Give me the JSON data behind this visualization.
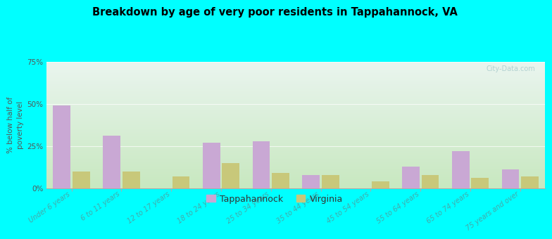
{
  "title": "Breakdown by age of very poor residents in Tappahannock, VA",
  "categories": [
    "Under 6 years",
    "6 to 11 years",
    "12 to 17 years",
    "18 to 24 years",
    "25 to 34 years",
    "35 to 44 years",
    "45 to 54 years",
    "55 to 64 years",
    "65 to 74 years",
    "75 years and over"
  ],
  "tappahannock_values": [
    49,
    31,
    0,
    27,
    28,
    8,
    0,
    13,
    22,
    11
  ],
  "virginia_values": [
    10,
    10,
    7,
    15,
    9,
    8,
    4,
    8,
    6,
    7
  ],
  "tappahannock_color": "#c9a8d4",
  "virginia_color": "#c8c87a",
  "ylabel": "% below half of\npoverty level",
  "ylim": [
    0,
    75
  ],
  "yticks": [
    0,
    25,
    50,
    75
  ],
  "ytick_labels": [
    "0%",
    "25%",
    "50%",
    "75%"
  ],
  "bg_top_left": "#c8e8c0",
  "bg_top_right": "#e8f4f0",
  "bg_bottom": "#ddeedd",
  "outer_bg": "#00ffff",
  "bar_width": 0.35,
  "legend_tappahannock": "Tappahannock",
  "legend_virginia": "Virginia",
  "watermark": "City-Data.com",
  "tick_label_color": "#44aaaa",
  "ylabel_color": "#555555",
  "ytick_color": "#555555"
}
